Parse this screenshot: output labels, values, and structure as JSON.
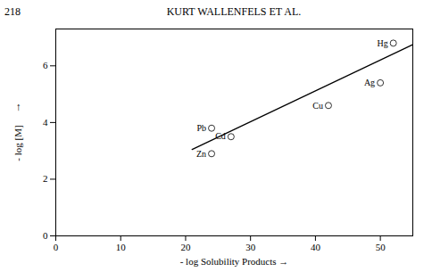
{
  "chart_data": {
    "type": "scatter",
    "title": "KURT WALLENFELS ET AL.",
    "annotations": [
      "218"
    ],
    "xlabel": "- log Solubility Products →",
    "ylabel": [
      "↑",
      "- log [M]"
    ],
    "x": [
      24.0,
      24.0,
      27.0,
      42.0,
      50.0,
      52.0
    ],
    "values": [
      2.9,
      3.8,
      3.5,
      4.6,
      5.4,
      6.8
    ],
    "point_labels": [
      "Zn",
      "Pb",
      "Cd",
      "Cu",
      "Ag",
      "Hg"
    ],
    "marker": "circle",
    "color": "white",
    "fit_line": {
      "type": "line",
      "x": [
        21.0,
        55.0
      ],
      "values": [
        3.05,
        6.75
      ],
      "color": "black"
    },
    "xlim": [
      0,
      55
    ],
    "ylim": [
      0,
      7.3
    ],
    "xticks": [
      0,
      10,
      20,
      30,
      40,
      50
    ],
    "yticks": [
      0,
      2,
      4,
      6
    ],
    "grid": false
  }
}
